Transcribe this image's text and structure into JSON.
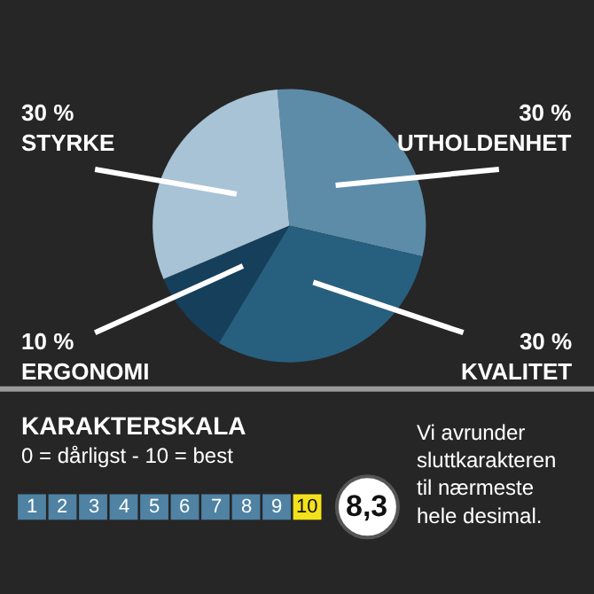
{
  "chart_data": {
    "type": "pie",
    "categories": [
      "UTHOLDENHET",
      "KVALITET",
      "ERGONOMI",
      "STYRKE"
    ],
    "values": [
      30,
      30,
      10,
      30
    ],
    "value_labels": [
      "30 %",
      "30 %",
      "10 %",
      "30 %"
    ],
    "colors": [
      "#5d8ca8",
      "#27607e",
      "#163f5b",
      "#a8c3d6"
    ],
    "legend": false,
    "annotations": [
      "KARAKTERSKALA",
      "0 = dårligst - 10 = best",
      "1",
      "2",
      "3",
      "4",
      "5",
      "6",
      "7",
      "8",
      "9",
      "10",
      "8,3",
      "Vi avrunder sluttkarakteren til nærmeste hele desimal."
    ]
  }
}
